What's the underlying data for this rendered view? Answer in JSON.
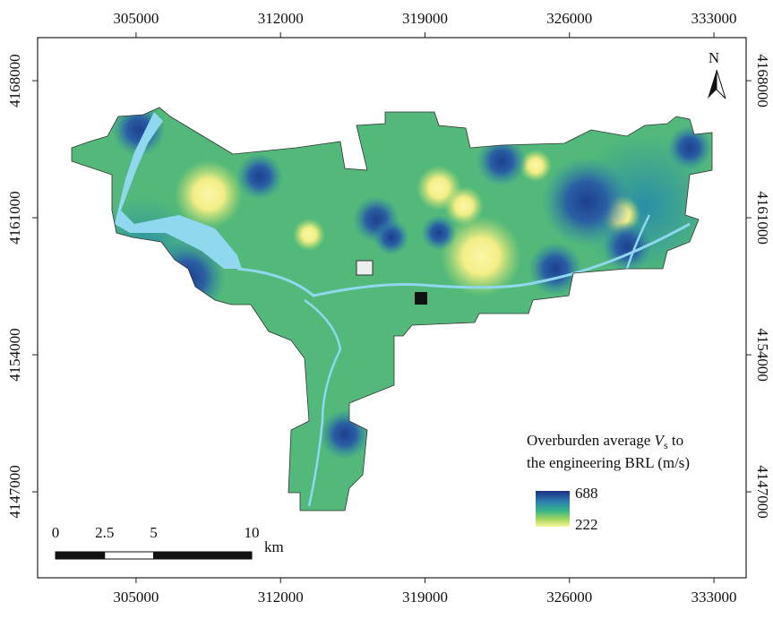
{
  "map": {
    "xlim": [
      300230,
      334560
    ],
    "ylim": [
      4142610,
      4170200
    ],
    "xticks": [
      305000,
      312000,
      319000,
      326000,
      333000
    ],
    "yticks": [
      4147000,
      4154000,
      4161000,
      4168000
    ],
    "north": "N",
    "legend": {
      "title_pre": "Overburden average ",
      "symbol": "V",
      "subscript": "s",
      "title_post": " to",
      "title_line2": "the engineering BRL (m/s)",
      "max": 688,
      "min": 222
    },
    "scale_bar": {
      "ticks": [
        0,
        2.5,
        5,
        10
      ],
      "unit": "km"
    }
  }
}
